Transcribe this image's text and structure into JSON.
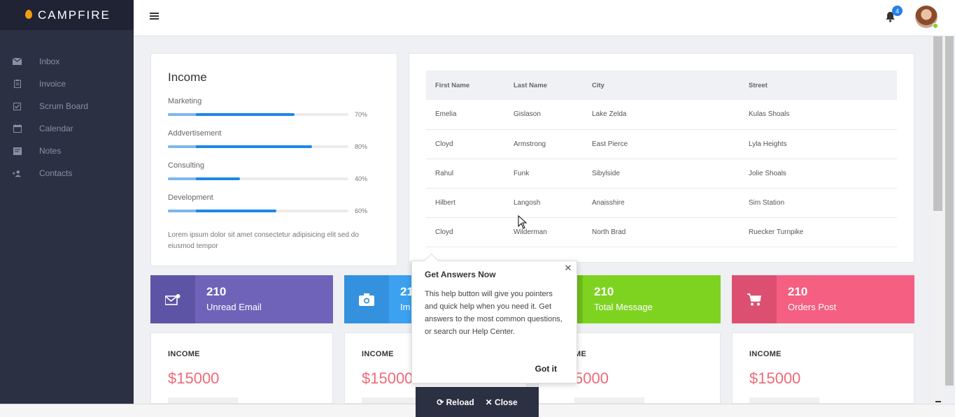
{
  "app": {
    "brand": "CAMPFIRE"
  },
  "sidebar": {
    "items": [
      {
        "label": "Inbox",
        "icon": "mail-icon"
      },
      {
        "label": "Invoice",
        "icon": "clipboard-icon"
      },
      {
        "label": "Scrum Board",
        "icon": "checkbox-icon"
      },
      {
        "label": "Calendar",
        "icon": "calendar-icon"
      },
      {
        "label": "Notes",
        "icon": "note-icon"
      },
      {
        "label": "Contacts",
        "icon": "add-person-icon"
      }
    ]
  },
  "header": {
    "notification_count": "4"
  },
  "income": {
    "title": "Income",
    "bars": [
      {
        "label": "Marketing",
        "pct": "70%",
        "value": 70
      },
      {
        "label": "Addvertisement",
        "pct": "80%",
        "value": 80
      },
      {
        "label": "Consulting",
        "pct": "40%",
        "value": 40
      },
      {
        "label": "Development",
        "pct": "60%",
        "value": 60
      }
    ],
    "lorem": "Lorem ipsum dolor sit amet consectetur adipisicing elit sed do eiusmod tempor"
  },
  "table": {
    "headers": [
      "First Name",
      "Last Name",
      "City",
      "Street"
    ],
    "rows": [
      [
        "Emelia",
        "Gislason",
        "Lake Zelda",
        "Kulas Shoals"
      ],
      [
        "Cloyd",
        "Armstrong",
        "East Pierce",
        "Lyla Heights"
      ],
      [
        "Rahul",
        "Funk",
        "Sibylside",
        "Jolie Shoals"
      ],
      [
        "Hilbert",
        "Langosh",
        "Anaisshire",
        "Sim Station"
      ],
      [
        "Cloyd",
        "Wilderman",
        "North Brad",
        "Ruecker Turnpike"
      ]
    ]
  },
  "tiles": [
    {
      "num": "210",
      "label": "Unread Email",
      "color": "#6f63b9",
      "icon_bg": "#5e54a5"
    },
    {
      "num": "21",
      "label": "Im",
      "color": "#3ba1f0",
      "icon_bg": "#3491dd"
    },
    {
      "num": "210",
      "label": "Total Message",
      "color": "#7ed321",
      "icon_bg": "#6fbd1b"
    },
    {
      "num": "210",
      "label": "Orders Post",
      "color": "#f45f82",
      "icon_bg": "#dd4f71"
    }
  ],
  "income_boxes": [
    {
      "title": "INCOME",
      "value": "$15000"
    },
    {
      "title": "INCOME",
      "value": "$15000"
    },
    {
      "title": "ME",
      "value": "5000"
    },
    {
      "title": "INCOME",
      "value": "$15000"
    }
  ],
  "popover": {
    "title": "Get Answers Now",
    "text": "This help button will give you pointers and quick help when you need it. Get answers to the most common questions, or search our Help Center.",
    "confirm": "Got it"
  },
  "reloadbar": {
    "reload": "Reload",
    "close": "Close"
  }
}
